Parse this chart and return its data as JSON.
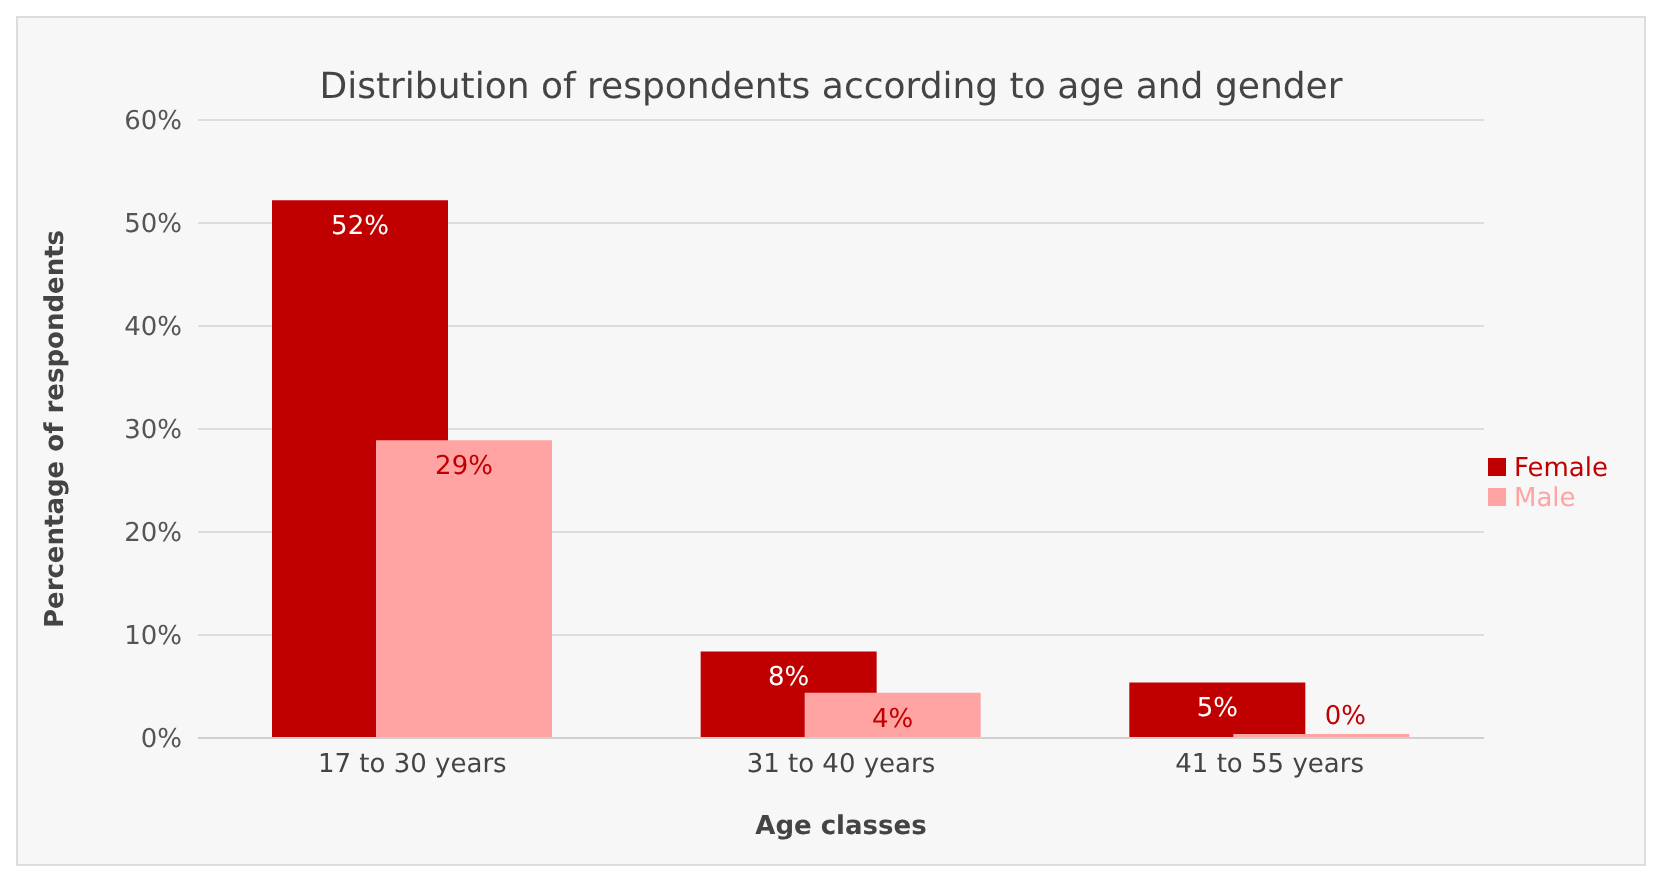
{
  "chart_data": {
    "type": "bar",
    "title": "Distribution of respondents according to age and gender",
    "xlabel": "Age classes",
    "ylabel": "Percentage of respondents",
    "categories": [
      "17 to 30 years",
      "31 to 40 years",
      "41 to 55 years"
    ],
    "series": [
      {
        "name": "Female",
        "color": "#c00000",
        "values": [
          52.2,
          8.4,
          5.4
        ],
        "value_labels": [
          "52%",
          "8%",
          "5%"
        ]
      },
      {
        "name": "Male",
        "color": "#ffa3a3",
        "values": [
          28.9,
          4.4,
          0.4
        ],
        "value_labels": [
          "29%",
          "4%",
          "0%"
        ]
      }
    ],
    "ylim": [
      0,
      60
    ],
    "yticks": [
      {
        "value": 0,
        "label": "0%"
      },
      {
        "value": 10,
        "label": "10%"
      },
      {
        "value": 20,
        "label": "20%"
      },
      {
        "value": 30,
        "label": "30%"
      },
      {
        "value": 40,
        "label": "40%"
      },
      {
        "value": 50,
        "label": "50%"
      },
      {
        "value": 60,
        "label": "60%"
      }
    ],
    "grid": "y",
    "legend": "right"
  }
}
